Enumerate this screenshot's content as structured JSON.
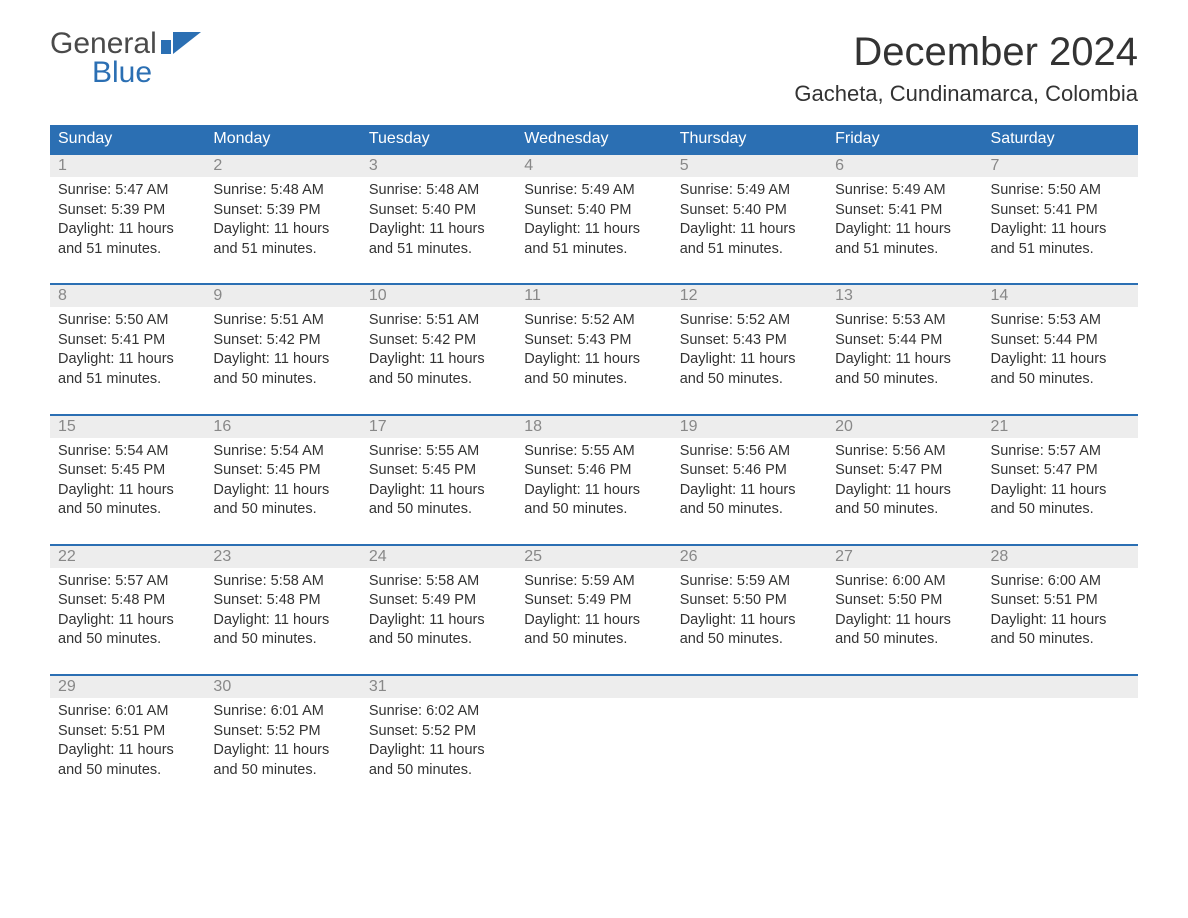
{
  "logo": {
    "text1": "General",
    "text2": "Blue",
    "color_gray": "#4a4a4a",
    "color_blue": "#2b6fb3"
  },
  "title": "December 2024",
  "location": "Gacheta, Cundinamarca, Colombia",
  "colors": {
    "header_bg": "#2b6fb3",
    "header_text": "#ffffff",
    "daynum_bg": "#ededed",
    "daynum_text": "#888888",
    "body_text": "#333333",
    "week_border": "#2b6fb3",
    "page_bg": "#ffffff"
  },
  "day_headers": [
    "Sunday",
    "Monday",
    "Tuesday",
    "Wednesday",
    "Thursday",
    "Friday",
    "Saturday"
  ],
  "weeks": [
    [
      {
        "n": "1",
        "sunrise": "Sunrise: 5:47 AM",
        "sunset": "Sunset: 5:39 PM",
        "d1": "Daylight: 11 hours",
        "d2": "and 51 minutes."
      },
      {
        "n": "2",
        "sunrise": "Sunrise: 5:48 AM",
        "sunset": "Sunset: 5:39 PM",
        "d1": "Daylight: 11 hours",
        "d2": "and 51 minutes."
      },
      {
        "n": "3",
        "sunrise": "Sunrise: 5:48 AM",
        "sunset": "Sunset: 5:40 PM",
        "d1": "Daylight: 11 hours",
        "d2": "and 51 minutes."
      },
      {
        "n": "4",
        "sunrise": "Sunrise: 5:49 AM",
        "sunset": "Sunset: 5:40 PM",
        "d1": "Daylight: 11 hours",
        "d2": "and 51 minutes."
      },
      {
        "n": "5",
        "sunrise": "Sunrise: 5:49 AM",
        "sunset": "Sunset: 5:40 PM",
        "d1": "Daylight: 11 hours",
        "d2": "and 51 minutes."
      },
      {
        "n": "6",
        "sunrise": "Sunrise: 5:49 AM",
        "sunset": "Sunset: 5:41 PM",
        "d1": "Daylight: 11 hours",
        "d2": "and 51 minutes."
      },
      {
        "n": "7",
        "sunrise": "Sunrise: 5:50 AM",
        "sunset": "Sunset: 5:41 PM",
        "d1": "Daylight: 11 hours",
        "d2": "and 51 minutes."
      }
    ],
    [
      {
        "n": "8",
        "sunrise": "Sunrise: 5:50 AM",
        "sunset": "Sunset: 5:41 PM",
        "d1": "Daylight: 11 hours",
        "d2": "and 51 minutes."
      },
      {
        "n": "9",
        "sunrise": "Sunrise: 5:51 AM",
        "sunset": "Sunset: 5:42 PM",
        "d1": "Daylight: 11 hours",
        "d2": "and 50 minutes."
      },
      {
        "n": "10",
        "sunrise": "Sunrise: 5:51 AM",
        "sunset": "Sunset: 5:42 PM",
        "d1": "Daylight: 11 hours",
        "d2": "and 50 minutes."
      },
      {
        "n": "11",
        "sunrise": "Sunrise: 5:52 AM",
        "sunset": "Sunset: 5:43 PM",
        "d1": "Daylight: 11 hours",
        "d2": "and 50 minutes."
      },
      {
        "n": "12",
        "sunrise": "Sunrise: 5:52 AM",
        "sunset": "Sunset: 5:43 PM",
        "d1": "Daylight: 11 hours",
        "d2": "and 50 minutes."
      },
      {
        "n": "13",
        "sunrise": "Sunrise: 5:53 AM",
        "sunset": "Sunset: 5:44 PM",
        "d1": "Daylight: 11 hours",
        "d2": "and 50 minutes."
      },
      {
        "n": "14",
        "sunrise": "Sunrise: 5:53 AM",
        "sunset": "Sunset: 5:44 PM",
        "d1": "Daylight: 11 hours",
        "d2": "and 50 minutes."
      }
    ],
    [
      {
        "n": "15",
        "sunrise": "Sunrise: 5:54 AM",
        "sunset": "Sunset: 5:45 PM",
        "d1": "Daylight: 11 hours",
        "d2": "and 50 minutes."
      },
      {
        "n": "16",
        "sunrise": "Sunrise: 5:54 AM",
        "sunset": "Sunset: 5:45 PM",
        "d1": "Daylight: 11 hours",
        "d2": "and 50 minutes."
      },
      {
        "n": "17",
        "sunrise": "Sunrise: 5:55 AM",
        "sunset": "Sunset: 5:45 PM",
        "d1": "Daylight: 11 hours",
        "d2": "and 50 minutes."
      },
      {
        "n": "18",
        "sunrise": "Sunrise: 5:55 AM",
        "sunset": "Sunset: 5:46 PM",
        "d1": "Daylight: 11 hours",
        "d2": "and 50 minutes."
      },
      {
        "n": "19",
        "sunrise": "Sunrise: 5:56 AM",
        "sunset": "Sunset: 5:46 PM",
        "d1": "Daylight: 11 hours",
        "d2": "and 50 minutes."
      },
      {
        "n": "20",
        "sunrise": "Sunrise: 5:56 AM",
        "sunset": "Sunset: 5:47 PM",
        "d1": "Daylight: 11 hours",
        "d2": "and 50 minutes."
      },
      {
        "n": "21",
        "sunrise": "Sunrise: 5:57 AM",
        "sunset": "Sunset: 5:47 PM",
        "d1": "Daylight: 11 hours",
        "d2": "and 50 minutes."
      }
    ],
    [
      {
        "n": "22",
        "sunrise": "Sunrise: 5:57 AM",
        "sunset": "Sunset: 5:48 PM",
        "d1": "Daylight: 11 hours",
        "d2": "and 50 minutes."
      },
      {
        "n": "23",
        "sunrise": "Sunrise: 5:58 AM",
        "sunset": "Sunset: 5:48 PM",
        "d1": "Daylight: 11 hours",
        "d2": "and 50 minutes."
      },
      {
        "n": "24",
        "sunrise": "Sunrise: 5:58 AM",
        "sunset": "Sunset: 5:49 PM",
        "d1": "Daylight: 11 hours",
        "d2": "and 50 minutes."
      },
      {
        "n": "25",
        "sunrise": "Sunrise: 5:59 AM",
        "sunset": "Sunset: 5:49 PM",
        "d1": "Daylight: 11 hours",
        "d2": "and 50 minutes."
      },
      {
        "n": "26",
        "sunrise": "Sunrise: 5:59 AM",
        "sunset": "Sunset: 5:50 PM",
        "d1": "Daylight: 11 hours",
        "d2": "and 50 minutes."
      },
      {
        "n": "27",
        "sunrise": "Sunrise: 6:00 AM",
        "sunset": "Sunset: 5:50 PM",
        "d1": "Daylight: 11 hours",
        "d2": "and 50 minutes."
      },
      {
        "n": "28",
        "sunrise": "Sunrise: 6:00 AM",
        "sunset": "Sunset: 5:51 PM",
        "d1": "Daylight: 11 hours",
        "d2": "and 50 minutes."
      }
    ],
    [
      {
        "n": "29",
        "sunrise": "Sunrise: 6:01 AM",
        "sunset": "Sunset: 5:51 PM",
        "d1": "Daylight: 11 hours",
        "d2": "and 50 minutes."
      },
      {
        "n": "30",
        "sunrise": "Sunrise: 6:01 AM",
        "sunset": "Sunset: 5:52 PM",
        "d1": "Daylight: 11 hours",
        "d2": "and 50 minutes."
      },
      {
        "n": "31",
        "sunrise": "Sunrise: 6:02 AM",
        "sunset": "Sunset: 5:52 PM",
        "d1": "Daylight: 11 hours",
        "d2": "and 50 minutes."
      },
      null,
      null,
      null,
      null
    ]
  ]
}
